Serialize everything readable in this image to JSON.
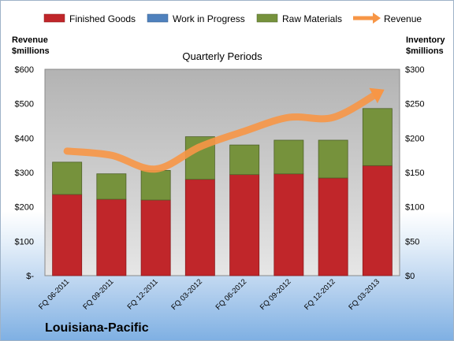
{
  "chart_data": {
    "type": "bar",
    "title": "Quarterly Periods",
    "company": "Louisiana-Pacific",
    "left_axis_title": [
      "Revenue",
      "$millions"
    ],
    "right_axis_title": [
      "Inventory",
      "$millions"
    ],
    "categories": [
      "FQ 06-2011",
      "FQ 09-2011",
      "FQ 12-2011",
      "FQ 03-2012",
      "FQ 06-2012",
      "FQ 09-2012",
      "FQ 12-2012",
      "FQ 03-2013"
    ],
    "left_ticks": [
      "$-",
      "$100",
      "$200",
      "$300",
      "$400",
      "$500",
      "$600"
    ],
    "right_ticks": [
      "$0",
      "$50",
      "$100",
      "$150",
      "$200",
      "$250",
      "$300"
    ],
    "left_ylim": [
      0,
      600
    ],
    "right_ylim": [
      0,
      300
    ],
    "stacked": true,
    "legend_position": "top",
    "grid": false,
    "series": [
      {
        "name": "Finished Goods",
        "axis": "right",
        "kind": "bar",
        "color": "#c0262a",
        "values": [
          118,
          111,
          110,
          140,
          147,
          148,
          142,
          160
        ]
      },
      {
        "name": "Work in Progress",
        "axis": "right",
        "kind": "bar",
        "color": "#4f81bd",
        "values": [
          0,
          0,
          0,
          0,
          0,
          0,
          0,
          0
        ]
      },
      {
        "name": "Raw Materials",
        "axis": "right",
        "kind": "bar",
        "color": "#76923c",
        "values": [
          47,
          37,
          43,
          62,
          43,
          49,
          55,
          83
        ]
      },
      {
        "name": "Revenue",
        "axis": "left",
        "kind": "line",
        "color": "#f79646",
        "values": [
          362,
          350,
          310,
          375,
          420,
          460,
          460,
          530
        ]
      }
    ]
  }
}
